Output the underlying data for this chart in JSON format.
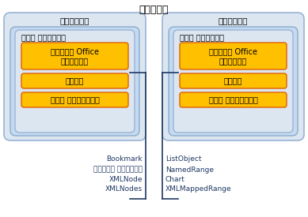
{
  "title": "ホスト項目",
  "left_box_label": "ドキュメント",
  "right_box_label": "ワークシート",
  "inner_label": "ホスト コントロール",
  "orange_box1": "ネイティブ Office\nオブジェクト",
  "orange_box2": "イベント",
  "orange_box3": "データ バインディング",
  "left_items": [
    "Bookmark",
    "コンテンツ コントロール",
    "XMLNode",
    "XMLNodes"
  ],
  "right_items": [
    "ListObject",
    "NamedRange",
    "Chart",
    "XMLMappedRange"
  ],
  "bg_color": "#ffffff",
  "outer_bg": "#dce6f1",
  "outer_border": "#9ab3d5",
  "mid_bg": "#c5d9f1",
  "mid_border": "#8aadcb",
  "inner_bg": "#dce6f1",
  "inner_border": "#9ab3d5",
  "orange_fill": "#ffc000",
  "orange_border": "#e06000",
  "text_dark": "#000000",
  "item_color": "#1f3864",
  "bracket_color": "#1f3864",
  "title_fontsize": 9,
  "label_fontsize": 7.5,
  "inner_label_fontsize": 7,
  "orange_fontsize": 7,
  "item_fontsize": 6.5
}
